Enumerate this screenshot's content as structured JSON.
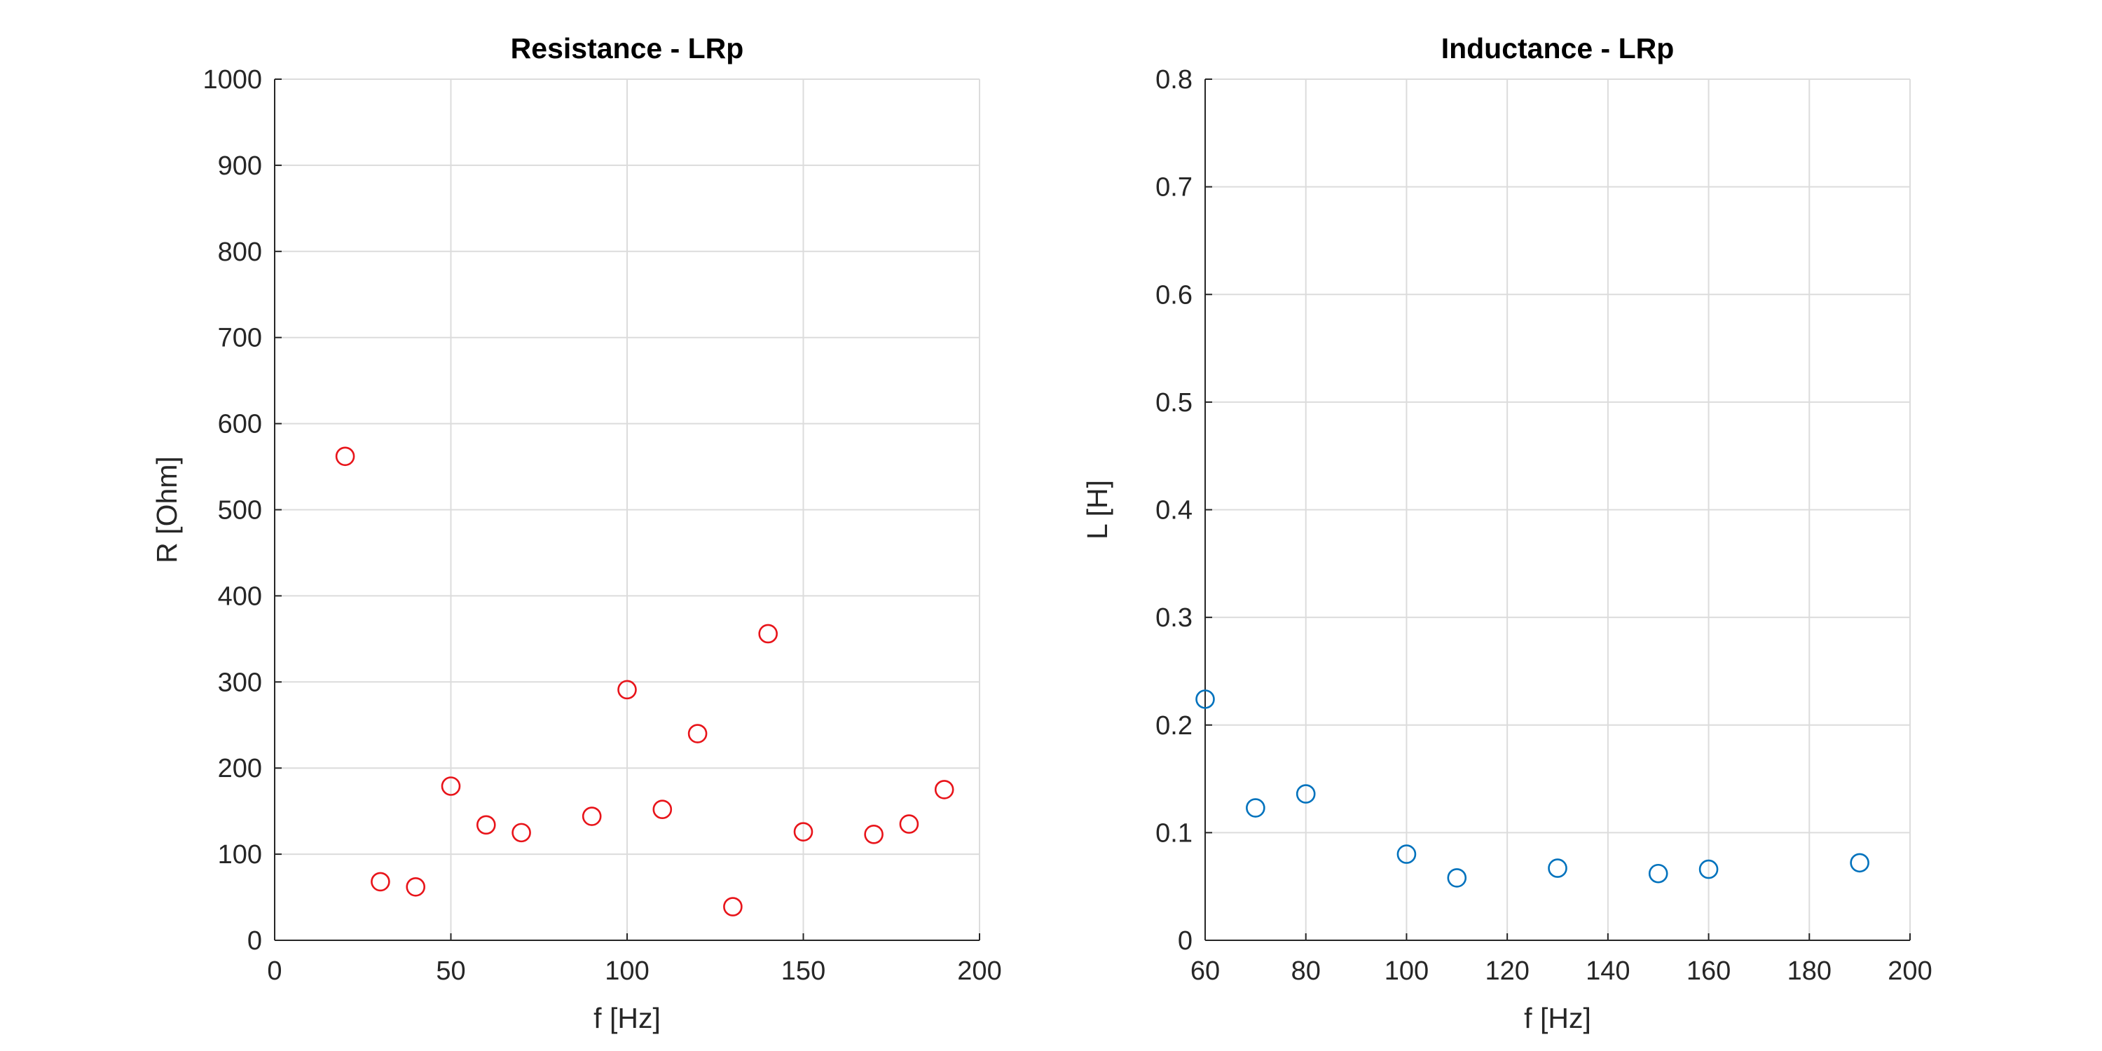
{
  "chart_data": [
    {
      "type": "scatter",
      "title": "Resistance - LRp",
      "xlabel": "f [Hz]",
      "ylabel": "R [Ohm]",
      "xlim": [
        0,
        200
      ],
      "ylim": [
        0,
        1000
      ],
      "xticks": [
        0,
        50,
        100,
        150,
        200
      ],
      "yticks": [
        0,
        100,
        200,
        300,
        400,
        500,
        600,
        700,
        800,
        900,
        1000
      ],
      "grid": true,
      "marker": "circle",
      "color": "#e8141a",
      "series": [
        {
          "x": [
            20,
            30,
            40,
            50,
            60,
            70,
            90,
            100,
            110,
            120,
            130,
            140,
            150,
            170,
            180,
            190
          ],
          "y": [
            562,
            68,
            62,
            179,
            134,
            125,
            144,
            291,
            152,
            240,
            39,
            356,
            126,
            123,
            135,
            175
          ]
        }
      ]
    },
    {
      "type": "scatter",
      "title": "Inductance - LRp",
      "xlabel": "f [Hz]",
      "ylabel": "L [H]",
      "xlim": [
        60,
        200
      ],
      "ylim": [
        0,
        0.8
      ],
      "xticks": [
        60,
        80,
        100,
        120,
        140,
        160,
        180,
        200
      ],
      "yticks": [
        0,
        0.1,
        0.2,
        0.3,
        0.4,
        0.5,
        0.6,
        0.7,
        0.8
      ],
      "grid": true,
      "marker": "circle",
      "color": "#0072bd",
      "series": [
        {
          "x": [
            60,
            70,
            80,
            100,
            110,
            130,
            150,
            160,
            190
          ],
          "y": [
            0.224,
            0.123,
            0.136,
            0.08,
            0.058,
            0.067,
            0.062,
            0.066,
            0.072
          ]
        }
      ]
    }
  ]
}
